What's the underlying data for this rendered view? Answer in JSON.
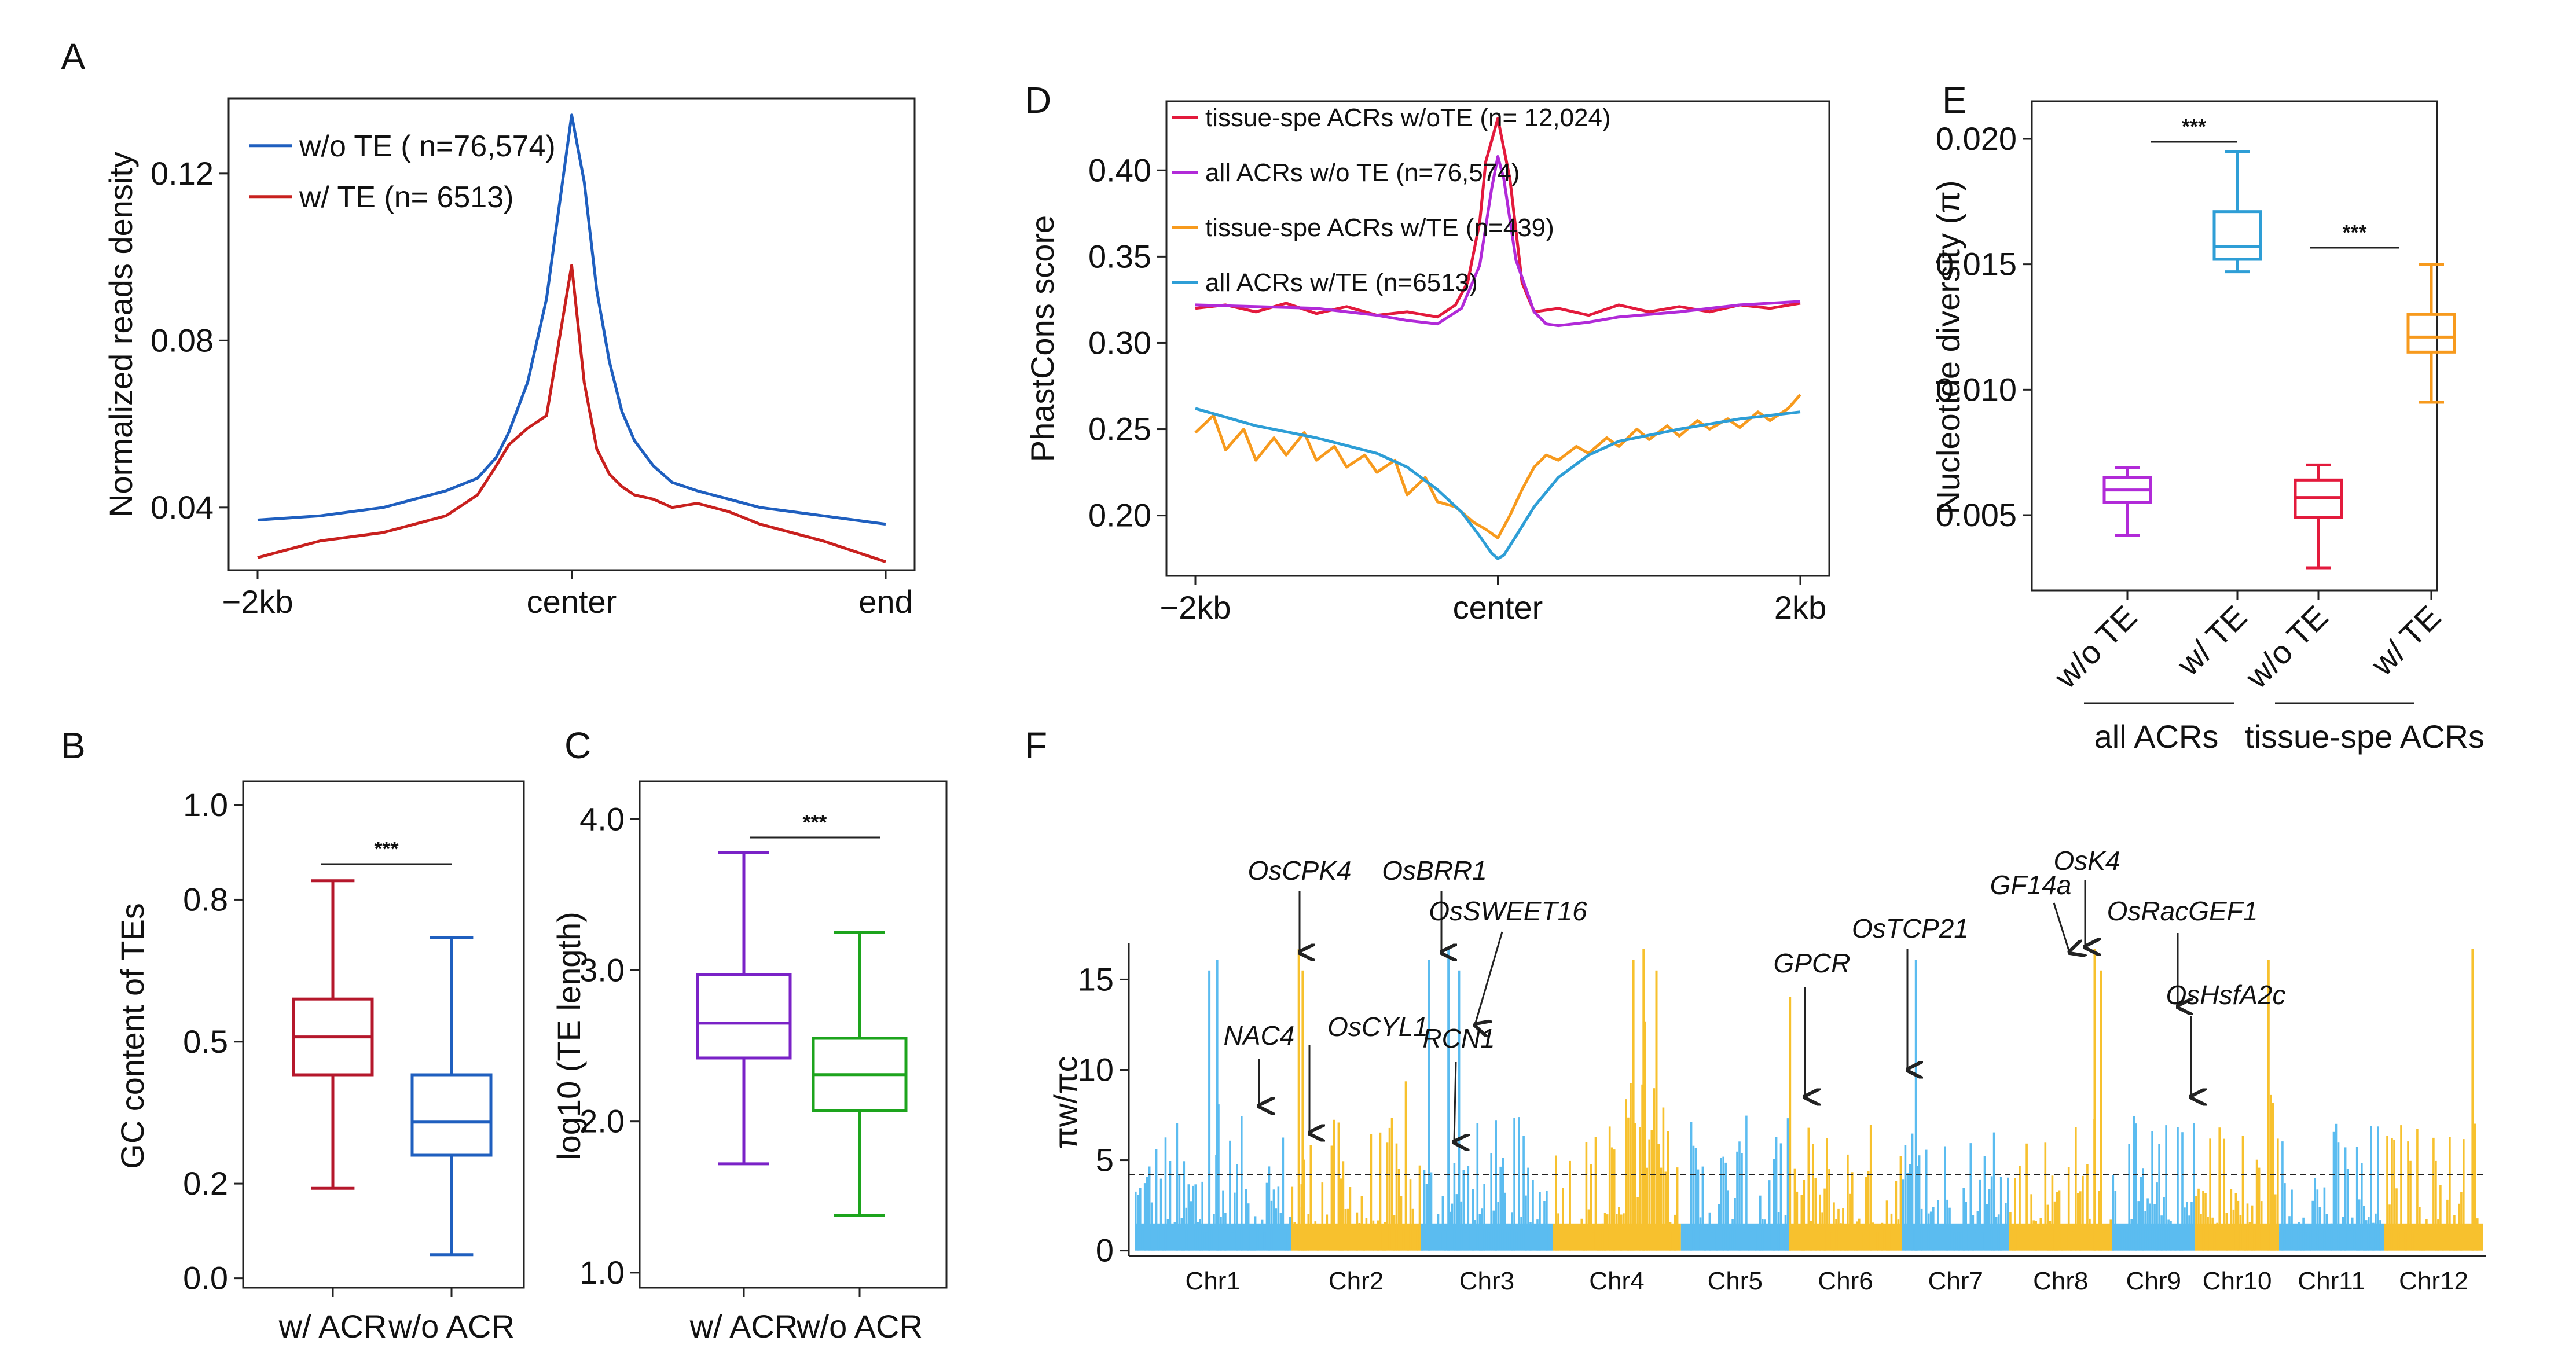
{
  "panels": {
    "A": "A",
    "B": "B",
    "C": "C",
    "D": "D",
    "E": "E",
    "F": "F"
  },
  "chart_data": [
    {
      "id": "A",
      "type": "line",
      "ylabel": "Normalized reads density",
      "x_tick_labels": [
        "−2kb",
        "center",
        "end"
      ],
      "y_ticks": [
        0.04,
        0.08,
        0.12
      ],
      "ylim": [
        0.025,
        0.138
      ],
      "xlim": [
        0,
        100
      ],
      "x": [
        0,
        10,
        20,
        25,
        30,
        35,
        38,
        40,
        43,
        46,
        48,
        50,
        52,
        54,
        56,
        58,
        60,
        63,
        66,
        70,
        75,
        80,
        90,
        100
      ],
      "series": [
        {
          "name": "w/o TE ( n=76,574)",
          "color": "#1f5fbf",
          "values": [
            0.037,
            0.038,
            0.04,
            0.042,
            0.044,
            0.047,
            0.052,
            0.058,
            0.07,
            0.09,
            0.112,
            0.134,
            0.118,
            0.092,
            0.075,
            0.063,
            0.056,
            0.05,
            0.046,
            0.044,
            0.042,
            0.04,
            0.038,
            0.036
          ]
        },
        {
          "name": "w/ TE (n= 6513)",
          "color": "#c8201e",
          "values": [
            0.028,
            0.032,
            0.034,
            0.036,
            0.038,
            0.043,
            0.05,
            0.055,
            0.059,
            0.062,
            0.08,
            0.098,
            0.07,
            0.054,
            0.048,
            0.045,
            0.043,
            0.042,
            0.04,
            0.041,
            0.039,
            0.036,
            0.032,
            0.027
          ]
        }
      ]
    },
    {
      "id": "B",
      "type": "box",
      "ylabel": "GC content of TEs",
      "categories": [
        "w/ ACR",
        "w/o ACR"
      ],
      "y_ticks": [
        0.0,
        0.2,
        0.5,
        0.8,
        1.0
      ],
      "ylim": [
        -0.02,
        1.05
      ],
      "significance": "***",
      "boxes": [
        {
          "name": "w/ ACR",
          "color": "#b5172b",
          "min": 0.19,
          "q1": 0.43,
          "median": 0.51,
          "q3": 0.59,
          "max": 0.84
        },
        {
          "name": "w/o ACR",
          "color": "#1f5fbf",
          "min": 0.05,
          "q1": 0.26,
          "median": 0.33,
          "q3": 0.43,
          "max": 0.72
        }
      ]
    },
    {
      "id": "C",
      "type": "box",
      "ylabel": "log10 (TE length)",
      "categories": [
        "w/ ACR",
        "w/o ACR"
      ],
      "y_ticks": [
        1.0,
        2.0,
        3.0,
        4.0
      ],
      "ylim": [
        0.9,
        4.25
      ],
      "significance": "***",
      "boxes": [
        {
          "name": "w/ ACR",
          "color": "#7a22c7",
          "min": 1.72,
          "q1": 2.42,
          "median": 2.65,
          "q3": 2.97,
          "max": 3.78
        },
        {
          "name": "w/o ACR",
          "color": "#1da41d",
          "min": 1.38,
          "q1": 2.07,
          "median": 2.31,
          "q3": 2.55,
          "max": 3.25
        }
      ]
    },
    {
      "id": "D",
      "type": "line",
      "ylabel": "PhastCons score",
      "x_tick_labels": [
        "−2kb",
        "center",
        "2kb"
      ],
      "y_ticks": [
        0.2,
        0.25,
        0.3,
        0.35,
        0.4
      ],
      "ylim": [
        0.165,
        0.44
      ],
      "xlim": [
        0,
        100
      ],
      "series": [
        {
          "name": "tissue-spe ACRs w/oTE (n= 12,024)",
          "color": "#e31a3c",
          "x": [
            0,
            5,
            10,
            15,
            20,
            25,
            30,
            35,
            40,
            43,
            45,
            47,
            48,
            50,
            52,
            54,
            56,
            60,
            65,
            70,
            75,
            80,
            85,
            90,
            95,
            100
          ],
          "values": [
            0.32,
            0.322,
            0.318,
            0.323,
            0.317,
            0.321,
            0.316,
            0.318,
            0.315,
            0.322,
            0.335,
            0.37,
            0.405,
            0.43,
            0.395,
            0.335,
            0.318,
            0.32,
            0.316,
            0.322,
            0.318,
            0.321,
            0.318,
            0.322,
            0.32,
            0.323
          ]
        },
        {
          "name": "all ACRs w/o TE (n=76,574)",
          "color": "#b12ad8",
          "x": [
            0,
            10,
            20,
            30,
            35,
            40,
            44,
            47,
            49,
            50,
            51,
            53,
            56,
            58,
            60,
            65,
            70,
            80,
            90,
            100
          ],
          "values": [
            0.322,
            0.321,
            0.32,
            0.316,
            0.313,
            0.311,
            0.32,
            0.345,
            0.39,
            0.408,
            0.395,
            0.348,
            0.318,
            0.311,
            0.31,
            0.312,
            0.315,
            0.318,
            0.322,
            0.324
          ]
        },
        {
          "name": "tissue-spe ACRs w/TE (n=439)",
          "color": "#f79a1d",
          "x": [
            0,
            3,
            5,
            8,
            10,
            13,
            15,
            18,
            20,
            23,
            25,
            28,
            30,
            33,
            35,
            38,
            40,
            43,
            46,
            48,
            50,
            52,
            54,
            56,
            58,
            60,
            63,
            65,
            68,
            70,
            73,
            75,
            78,
            80,
            83,
            85,
            88,
            90,
            93,
            95,
            98,
            100
          ],
          "values": [
            0.248,
            0.258,
            0.238,
            0.25,
            0.232,
            0.245,
            0.235,
            0.248,
            0.232,
            0.24,
            0.228,
            0.235,
            0.225,
            0.232,
            0.212,
            0.222,
            0.208,
            0.205,
            0.196,
            0.192,
            0.187,
            0.2,
            0.215,
            0.228,
            0.235,
            0.232,
            0.24,
            0.236,
            0.245,
            0.24,
            0.25,
            0.244,
            0.252,
            0.246,
            0.255,
            0.25,
            0.256,
            0.251,
            0.26,
            0.255,
            0.262,
            0.27
          ]
        },
        {
          "name": "all ACRs w/TE (n=6513)",
          "color": "#2e9ed6",
          "x": [
            0,
            10,
            20,
            30,
            35,
            40,
            44,
            47,
            49,
            50,
            51,
            53,
            56,
            60,
            65,
            70,
            80,
            90,
            100
          ],
          "values": [
            0.262,
            0.252,
            0.245,
            0.236,
            0.228,
            0.215,
            0.202,
            0.188,
            0.178,
            0.175,
            0.177,
            0.188,
            0.205,
            0.222,
            0.235,
            0.243,
            0.25,
            0.256,
            0.26
          ]
        }
      ]
    },
    {
      "id": "E",
      "type": "box",
      "ylabel": "Nucleotide diversity (π)",
      "categories": [
        "w/o TE",
        "w/ TE",
        "w/o TE",
        "w/ TE"
      ],
      "groups": [
        "all ACRs",
        "tissue-spe ACRs"
      ],
      "y_ticks": [
        0.005,
        0.01,
        0.015,
        0.02
      ],
      "ylim": [
        0.002,
        0.0215
      ],
      "significance": "***",
      "boxes": [
        {
          "name": "w/o TE",
          "color": "#b12ad8",
          "min": 0.0042,
          "q1": 0.0055,
          "median": 0.006,
          "q3": 0.0065,
          "max": 0.0069
        },
        {
          "name": "w/ TE",
          "color": "#2e9ed6",
          "min": 0.0147,
          "q1": 0.0152,
          "median": 0.0157,
          "q3": 0.0171,
          "max": 0.0195
        },
        {
          "name": "w/o TE",
          "color": "#e31a3c",
          "min": 0.0029,
          "q1": 0.0049,
          "median": 0.0057,
          "q3": 0.0064,
          "max": 0.007
        },
        {
          "name": "w/ TE",
          "color": "#f79a1d",
          "min": 0.0095,
          "q1": 0.0115,
          "median": 0.0121,
          "q3": 0.013,
          "max": 0.015
        }
      ]
    },
    {
      "id": "F",
      "type": "bar",
      "ylabel": "πw/πc",
      "y_ticks": [
        0,
        5,
        10,
        15
      ],
      "ylim": [
        -0.3,
        17
      ],
      "threshold": 4.2,
      "chromosomes": [
        {
          "name": "Chr1",
          "length": 43.3,
          "color": "#5bbcf0"
        },
        {
          "name": "Chr2",
          "length": 35.9,
          "color": "#f7c12e"
        },
        {
          "name": "Chr3",
          "length": 36.4,
          "color": "#5bbcf0"
        },
        {
          "name": "Chr4",
          "length": 35.5,
          "color": "#f7c12e"
        },
        {
          "name": "Chr5",
          "length": 29.9,
          "color": "#5bbcf0"
        },
        {
          "name": "Chr6",
          "length": 31.2,
          "color": "#f7c12e"
        },
        {
          "name": "Chr7",
          "length": 29.7,
          "color": "#5bbcf0"
        },
        {
          "name": "Chr8",
          "length": 28.4,
          "color": "#f7c12e"
        },
        {
          "name": "Chr9",
          "length": 23.0,
          "color": "#5bbcf0"
        },
        {
          "name": "Chr10",
          "length": 23.2,
          "color": "#f7c12e"
        },
        {
          "name": "Chr11",
          "length": 29.0,
          "color": "#5bbcf0"
        },
        {
          "name": "Chr12",
          "length": 27.5,
          "color": "#f7c12e"
        }
      ],
      "annotations": [
        {
          "label": "NAC4",
          "value": 8.0
        },
        {
          "label": "OsCPK4",
          "value": 16.5
        },
        {
          "label": "OsCYL1",
          "value": 6.5
        },
        {
          "label": "OsBRR1",
          "value": 16.5
        },
        {
          "label": "OsSWEET16",
          "value": 12.5
        },
        {
          "label": "RCN1",
          "value": 6.0
        },
        {
          "label": "GPCR",
          "value": 8.5
        },
        {
          "label": "OsTCP21",
          "value": 10.0
        },
        {
          "label": "GF14a",
          "value": 16.5
        },
        {
          "label": "OsK4",
          "value": 16.8
        },
        {
          "label": "OsRacGEF1",
          "value": 13.5
        },
        {
          "label": "OsHsfA2c",
          "value": 8.5
        }
      ]
    }
  ]
}
